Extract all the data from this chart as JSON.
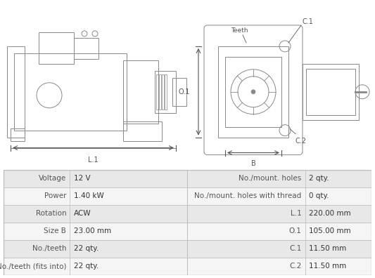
{
  "table_data": {
    "left_labels": [
      "Voltage",
      "Power",
      "Rotation",
      "Size B",
      "No./teeth",
      "No./teeth (fits into)"
    ],
    "left_values": [
      "12 V",
      "1.40 kW",
      "ACW",
      "23.00 mm",
      "22 qty.",
      "22 qty."
    ],
    "right_labels": [
      "No./mount. holes",
      "No./mount. holes with thread",
      "L.1",
      "O.1",
      "C.1",
      "C.2"
    ],
    "right_values": [
      "2 qty.",
      "0 qty.",
      "220.00 mm",
      "105.00 mm",
      "11.50 mm",
      "11.50 mm"
    ]
  },
  "bg_color": "#ffffff",
  "table_bg_odd": "#e8e8e8",
  "table_bg_even": "#f5f5f5",
  "border_color": "#bbbbbb",
  "text_color": "#333333",
  "label_color": "#555555"
}
